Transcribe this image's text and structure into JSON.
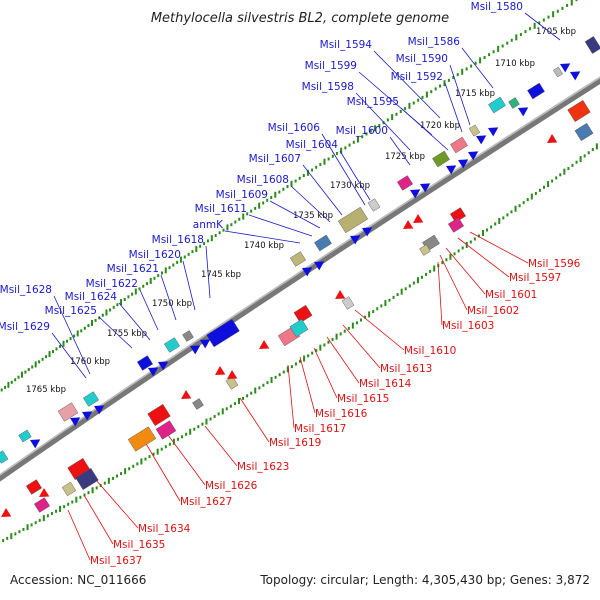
{
  "title": "Methylocella silvestris BL2, complete genome",
  "accession": "Accession: NC_011666",
  "topology": "Topology: circular; Length: 4,305,430 bp; Genes: 3,872",
  "colors": {
    "forward_label": "#1a1acc",
    "reverse_label": "#dd1111",
    "backbone": "#888888",
    "tick": "#2a8a1a",
    "forward_gene": "#0f0fdd",
    "reverse_gene": "#ee1111"
  },
  "kbp_ticks": [
    "1705 kbp",
    "1710 kbp",
    "1715 kbp",
    "1720 kbp",
    "1725 kbp",
    "1730 kbp",
    "1735 kbp",
    "1740 kbp",
    "1745 kbp",
    "1750 kbp",
    "1755 kbp",
    "1760 kbp",
    "1765 kbp"
  ],
  "forward_labels": [
    "Msil_1580",
    "Msil_1586",
    "Msil_1594",
    "Msil_1590",
    "Msil_1599",
    "Msil_1592",
    "Msil_1598",
    "Msil_1595",
    "Msil_1600",
    "Msil_1606",
    "Msil_1604",
    "Msil_1607",
    "Msil_1608",
    "Msil_1609",
    "Msil_1611",
    "anmK",
    "Msil_1618",
    "Msil_1620",
    "Msil_1621",
    "Msil_1622",
    "Msil_1628",
    "Msil_1624",
    "Msil_1625",
    "Msil_1629"
  ],
  "reverse_labels": [
    "Msil_1596",
    "Msil_1597",
    "Msil_1601",
    "Msil_1602",
    "Msil_1603",
    "Msil_1610",
    "Msil_1613",
    "Msil_1614",
    "Msil_1615",
    "Msil_1616",
    "Msil_1617",
    "Msil_1619",
    "Msil_1623",
    "Msil_1626",
    "Msil_1627",
    "Msil_1634",
    "Msil_1635",
    "Msil_1637"
  ]
}
